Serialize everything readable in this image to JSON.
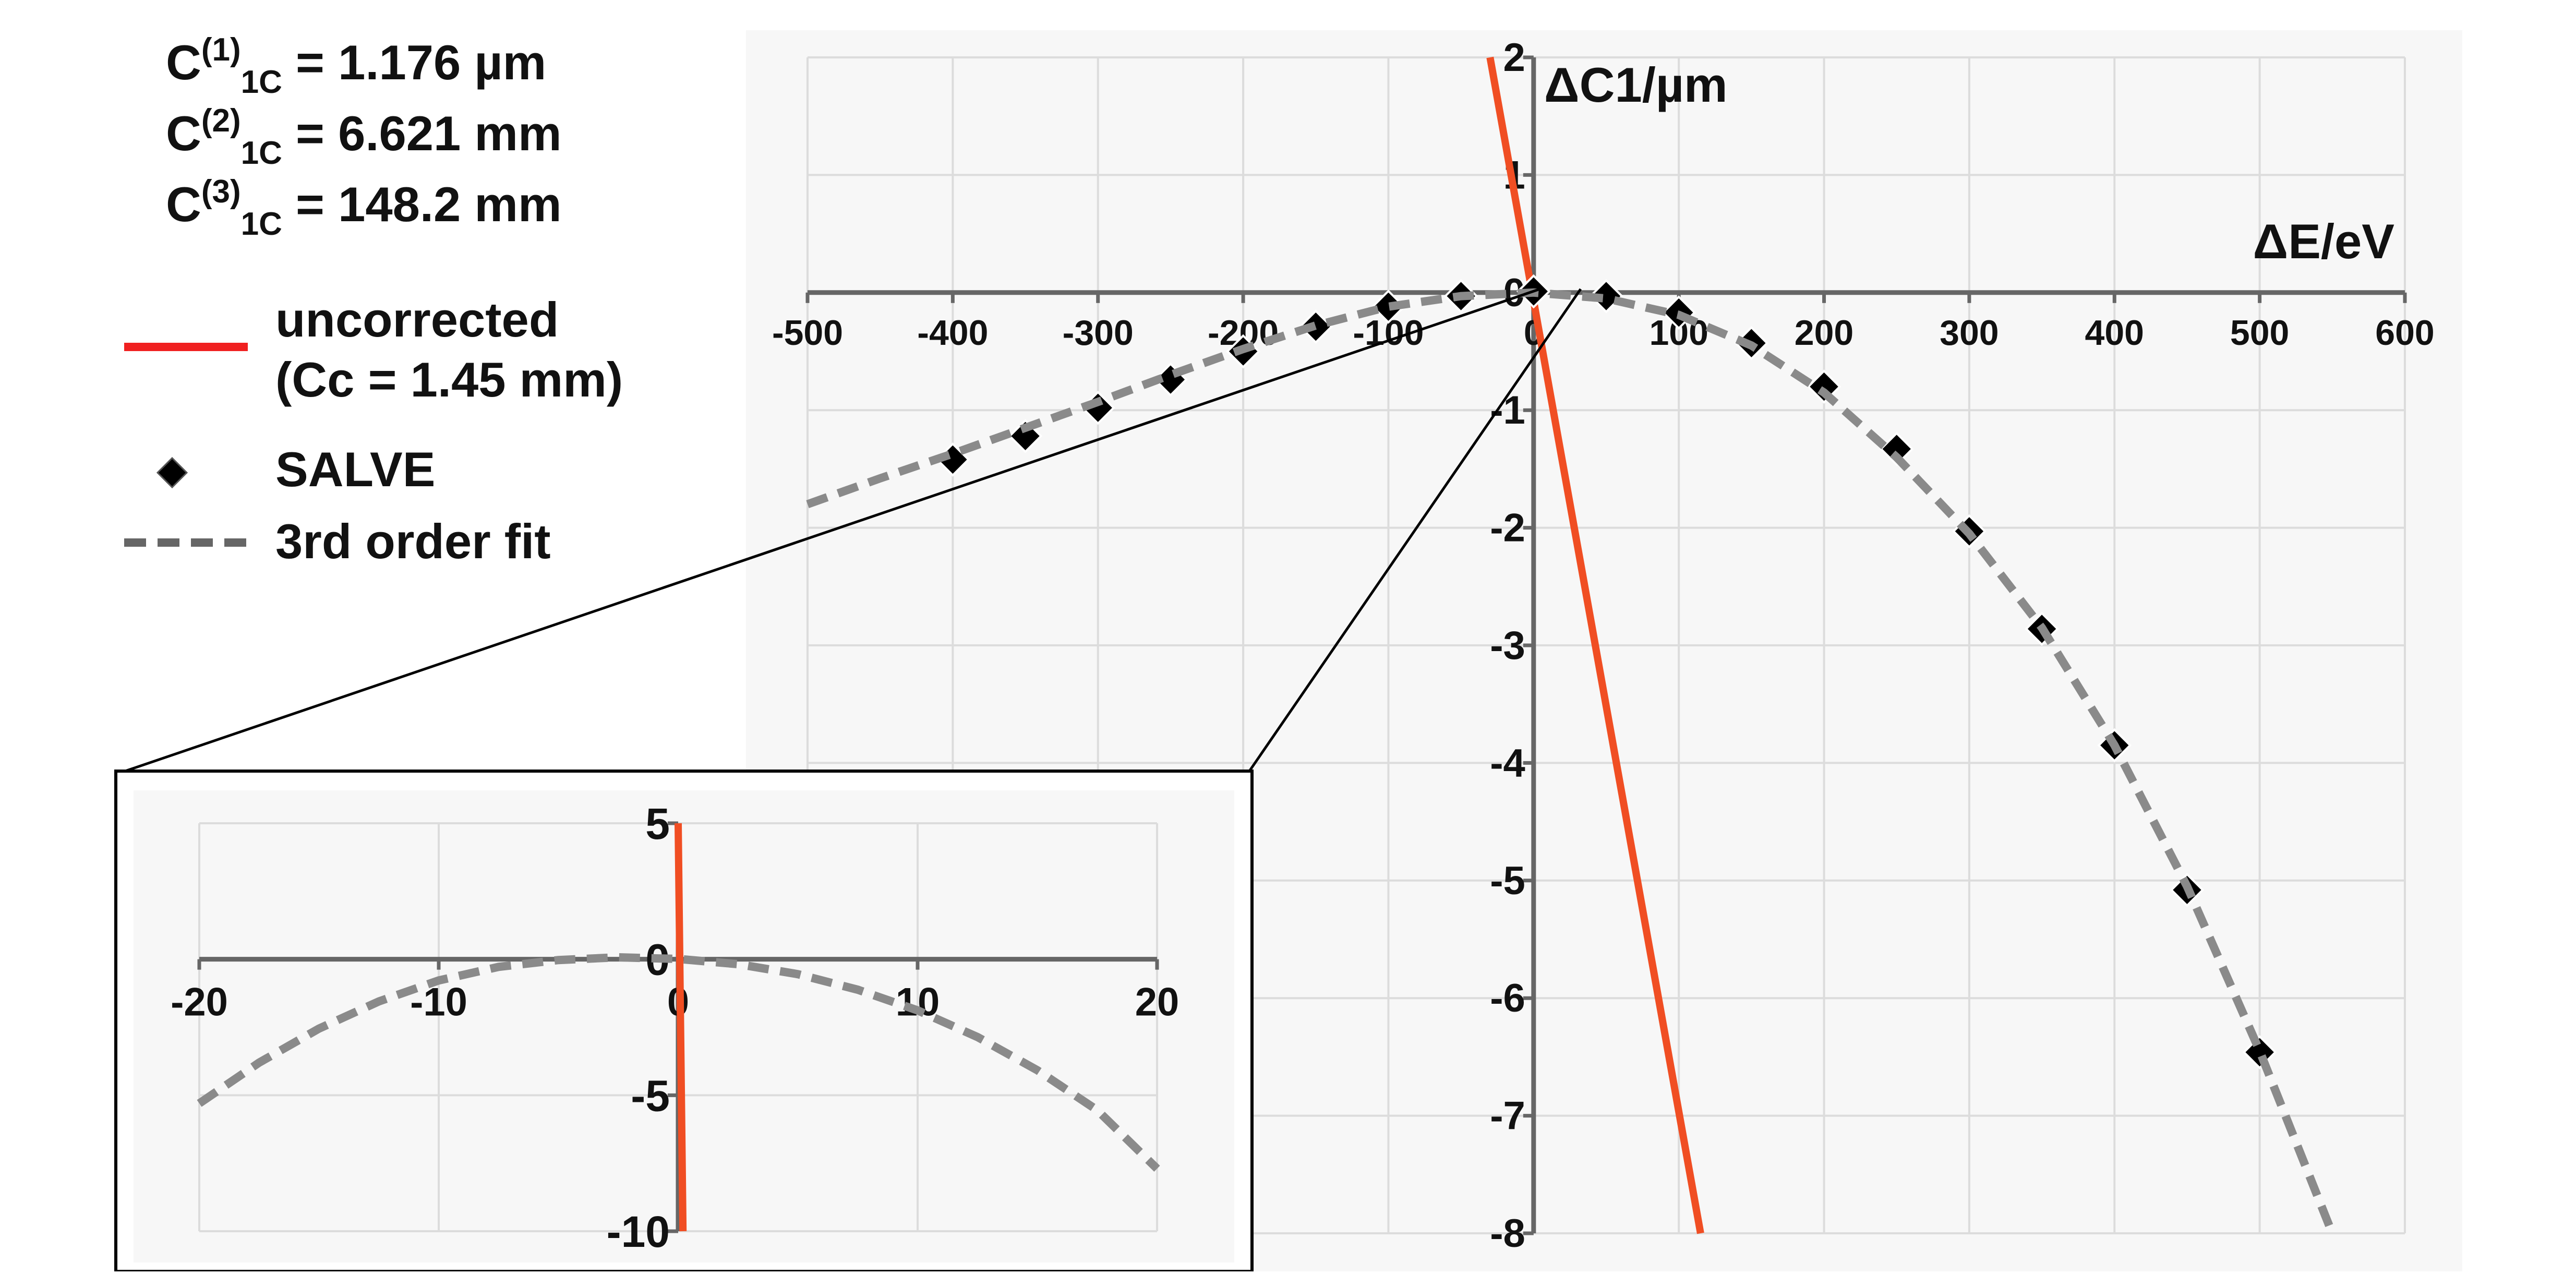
{
  "coefficients": [
    {
      "base": "C",
      "sup": "(1)",
      "sub": "1C",
      "value": " = 1.176 µm"
    },
    {
      "base": "C",
      "sup": "(2)",
      "sub": "1C",
      "value": " = 6.621 mm"
    },
    {
      "base": "C",
      "sup": "(3)",
      "sub": "1C",
      "value": " = 148.2 mm"
    }
  ],
  "legend": {
    "uncorrected_line1": "uncorrected",
    "uncorrected_line2": "(Cc = 1.45 mm)",
    "salve": "SALVE",
    "fit": "3rd order fit"
  },
  "colors": {
    "uncorrected": "#f04e23",
    "fit": "#8a8a8a",
    "markers": "#000000",
    "plot_bg": "#f7f7f7",
    "grid": "#dcdcdc",
    "axis": "#666666"
  },
  "chart_data": [
    {
      "type": "line",
      "xlabel": "ΔE/eV",
      "ylabel": "ΔC1/µm",
      "xlim": [
        -500,
        600
      ],
      "ylim": [
        -8,
        2
      ],
      "x_ticks": [
        -500,
        -400,
        -300,
        -200,
        -100,
        0,
        100,
        200,
        300,
        400,
        500,
        600
      ],
      "y_ticks": [
        2,
        1,
        0,
        -1,
        -2,
        -3,
        -4,
        -5,
        -6,
        -7,
        -8
      ],
      "grid": true,
      "legend_position": "top-left",
      "series": [
        {
          "name": "uncorrected",
          "style": "solid",
          "x": [
            -30,
            115
          ],
          "y": [
            2,
            -8
          ]
        },
        {
          "name": "SALVE",
          "style": "markers",
          "x": [
            -400,
            -350,
            -300,
            -250,
            -200,
            -150,
            -100,
            -50,
            0,
            50,
            100,
            150,
            200,
            250,
            300,
            350,
            400,
            450,
            500
          ],
          "y": [
            -1.42,
            -1.22,
            -0.98,
            -0.74,
            -0.5,
            -0.29,
            -0.12,
            -0.03,
            0.01,
            -0.03,
            -0.17,
            -0.43,
            -0.8,
            -1.33,
            -2.03,
            -2.86,
            -3.85,
            -5.08,
            -6.46
          ]
        },
        {
          "name": "3rd order fit",
          "style": "dashed",
          "x": [
            -500,
            -450,
            -400,
            -350,
            -300,
            -250,
            -200,
            -150,
            -100,
            -50,
            0,
            50,
            100,
            150,
            200,
            250,
            300,
            350,
            400,
            450,
            500,
            550
          ],
          "y": [
            -1.8,
            -1.58,
            -1.37,
            -1.15,
            -0.93,
            -0.7,
            -0.48,
            -0.28,
            -0.12,
            -0.03,
            0,
            -0.05,
            -0.19,
            -0.45,
            -0.85,
            -1.4,
            -2.05,
            -2.85,
            -3.85,
            -5.05,
            -6.45,
            -8.0
          ]
        }
      ]
    },
    {
      "type": "line",
      "xlim": [
        -20,
        20
      ],
      "ylim": [
        -10,
        5
      ],
      "x_ticks": [
        -20,
        -10,
        0,
        10,
        20
      ],
      "y_ticks": [
        5,
        0,
        -5,
        -10
      ],
      "grid": true,
      "series": [
        {
          "name": "uncorrected",
          "style": "solid",
          "x": [
            0,
            0.2
          ],
          "y": [
            5,
            -10
          ]
        },
        {
          "name": "3rd order fit",
          "style": "dashed",
          "x": [
            -20,
            -17.5,
            -15,
            -12.5,
            -10,
            -7.5,
            -5,
            -2.5,
            0,
            2.5,
            5,
            7.5,
            10,
            12.5,
            15,
            17.5,
            20
          ],
          "y": [
            -5.3,
            -3.8,
            -2.55,
            -1.55,
            -0.78,
            -0.28,
            -0.03,
            0.07,
            0.01,
            -0.18,
            -0.55,
            -1.12,
            -1.88,
            -2.86,
            -4.08,
            -5.55,
            -7.7
          ]
        }
      ]
    }
  ]
}
